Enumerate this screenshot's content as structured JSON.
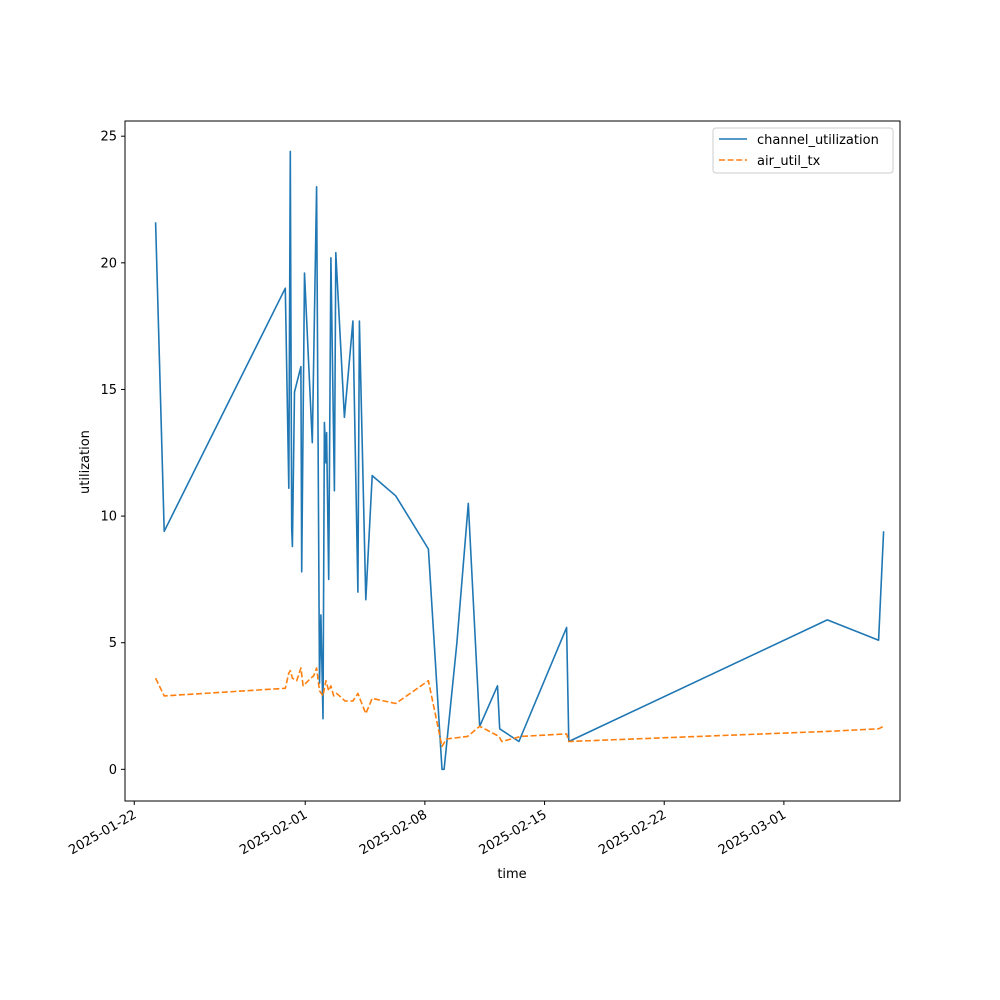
{
  "chart_data": {
    "type": "line",
    "title": "",
    "xlabel": "time",
    "ylabel": "utilization",
    "xlim": [
      "2025-01-21T11:00",
      "2025-03-07T19:00"
    ],
    "ylim": [
      -1.25,
      25.6
    ],
    "x_ticks": [
      {
        "date": "2025-01-22",
        "label": "2025-01-22"
      },
      {
        "date": "2025-02-01",
        "label": "2025-02-01"
      },
      {
        "date": "2025-02-08",
        "label": "2025-02-08"
      },
      {
        "date": "2025-02-15",
        "label": "2025-02-15"
      },
      {
        "date": "2025-02-22",
        "label": "2025-02-22"
      },
      {
        "date": "2025-03-01",
        "label": "2025-03-01"
      }
    ],
    "y_ticks": [
      0,
      5,
      10,
      15,
      20,
      25
    ],
    "grid": false,
    "legend_position": "upper-right",
    "series": [
      {
        "name": "channel_utilization",
        "color": "#1f77b4",
        "dash": "solid",
        "points": [
          [
            "2025-01-23T06:00",
            21.6
          ],
          [
            "2025-01-23T18:00",
            9.4
          ],
          [
            "2025-01-30T20:00",
            19.0
          ],
          [
            "2025-01-31T01:00",
            11.1
          ],
          [
            "2025-01-31T03:00",
            24.4
          ],
          [
            "2025-01-31T05:00",
            9.5
          ],
          [
            "2025-01-31T06:00",
            8.8
          ],
          [
            "2025-01-31T09:00",
            14.9
          ],
          [
            "2025-01-31T18:00",
            15.9
          ],
          [
            "2025-01-31T19:00",
            7.8
          ],
          [
            "2025-01-31T23:00",
            19.6
          ],
          [
            "2025-02-01T10:00",
            12.9
          ],
          [
            "2025-02-01T16:00",
            23.0
          ],
          [
            "2025-02-01T20:00",
            3.4
          ],
          [
            "2025-02-01T22:00",
            6.1
          ],
          [
            "2025-02-02T01:00",
            2.0
          ],
          [
            "2025-02-02T03:00",
            13.7
          ],
          [
            "2025-02-02T05:00",
            12.1
          ],
          [
            "2025-02-02T06:00",
            13.3
          ],
          [
            "2025-02-02T09:00",
            7.5
          ],
          [
            "2025-02-02T12:00",
            20.2
          ],
          [
            "2025-02-02T17:00",
            11.0
          ],
          [
            "2025-02-02T19:00",
            20.4
          ],
          [
            "2025-02-03T07:00",
            13.9
          ],
          [
            "2025-02-03T19:00",
            17.7
          ],
          [
            "2025-02-04T02:00",
            7.0
          ],
          [
            "2025-02-04T04:00",
            17.7
          ],
          [
            "2025-02-04T13:00",
            6.7
          ],
          [
            "2025-02-04T22:00",
            11.6
          ],
          [
            "2025-02-06T07:00",
            10.8
          ],
          [
            "2025-02-08T05:00",
            8.7
          ],
          [
            "2025-02-09T00:00",
            0.0
          ],
          [
            "2025-02-09T03:00",
            0.0
          ],
          [
            "2025-02-09T21:00",
            5.0
          ],
          [
            "2025-02-10T13:00",
            10.5
          ],
          [
            "2025-02-11T05:00",
            1.7
          ],
          [
            "2025-02-12T06:00",
            3.3
          ],
          [
            "2025-02-12T09:00",
            1.6
          ],
          [
            "2025-02-13T12:00",
            1.1
          ],
          [
            "2025-02-16T07:00",
            5.6
          ],
          [
            "2025-02-16T10:00",
            1.1
          ],
          [
            "2025-03-03T13:00",
            5.9
          ],
          [
            "2025-03-06T13:00",
            5.1
          ],
          [
            "2025-03-06T20:00",
            9.4
          ]
        ]
      },
      {
        "name": "air_util_tx",
        "color": "#ff7f0e",
        "dash": "dashed",
        "points": [
          [
            "2025-01-23T06:00",
            3.6
          ],
          [
            "2025-01-23T18:00",
            2.9
          ],
          [
            "2025-01-30T20:00",
            3.2
          ],
          [
            "2025-01-31T01:00",
            3.8
          ],
          [
            "2025-01-31T03:00",
            3.9
          ],
          [
            "2025-01-31T06:00",
            3.6
          ],
          [
            "2025-01-31T12:00",
            3.5
          ],
          [
            "2025-01-31T18:00",
            4.0
          ],
          [
            "2025-01-31T21:00",
            3.3
          ],
          [
            "2025-02-01T08:00",
            3.6
          ],
          [
            "2025-02-01T12:00",
            3.7
          ],
          [
            "2025-02-01T16:00",
            4.0
          ],
          [
            "2025-02-01T20:00",
            3.1
          ],
          [
            "2025-02-02T01:00",
            2.9
          ],
          [
            "2025-02-02T05:00",
            3.5
          ],
          [
            "2025-02-02T09:00",
            3.1
          ],
          [
            "2025-02-02T12:00",
            3.3
          ],
          [
            "2025-02-02T16:00",
            2.9
          ],
          [
            "2025-02-02T20:00",
            3.0
          ],
          [
            "2025-02-03T08:00",
            2.7
          ],
          [
            "2025-02-03T19:00",
            2.7
          ],
          [
            "2025-02-04T02:00",
            3.0
          ],
          [
            "2025-02-04T06:00",
            2.7
          ],
          [
            "2025-02-04T13:00",
            2.2
          ],
          [
            "2025-02-04T22:00",
            2.8
          ],
          [
            "2025-02-06T07:00",
            2.6
          ],
          [
            "2025-02-08T05:00",
            3.5
          ],
          [
            "2025-02-09T00:00",
            0.9
          ],
          [
            "2025-02-09T06:00",
            1.2
          ],
          [
            "2025-02-10T12:00",
            1.3
          ],
          [
            "2025-02-11T05:00",
            1.7
          ],
          [
            "2025-02-12T08:00",
            1.3
          ],
          [
            "2025-02-12T12:00",
            1.1
          ],
          [
            "2025-02-13T15:00",
            1.3
          ],
          [
            "2025-02-16T07:00",
            1.4
          ],
          [
            "2025-02-16T10:00",
            1.1
          ],
          [
            "2025-03-03T13:00",
            1.5
          ],
          [
            "2025-03-06T13:00",
            1.6
          ],
          [
            "2025-03-06T20:00",
            1.7
          ]
        ]
      }
    ]
  }
}
